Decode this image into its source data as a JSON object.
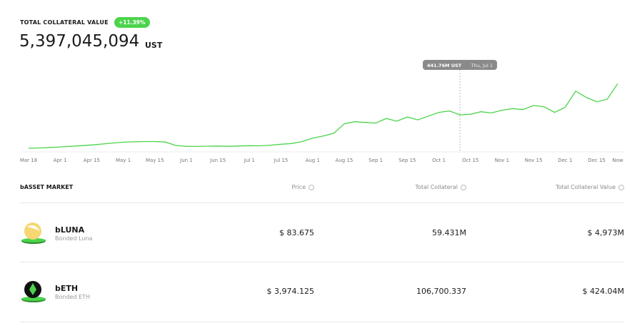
{
  "header": {
    "title": "TOTAL COLLATERAL VALUE",
    "change": "+11.39%",
    "value": "5,397,045,094",
    "unit": "UST"
  },
  "chart_data": {
    "type": "line",
    "color": "#4bd44b",
    "categories": [
      "Mar 18",
      null,
      null,
      "Apr 1",
      null,
      null,
      "Apr 15",
      null,
      null,
      "May 1",
      null,
      null,
      "May 15",
      null,
      null,
      "Jun 1",
      null,
      null,
      "Jun 15",
      null,
      null,
      "Jul 1",
      null,
      null,
      "Jul 15",
      null,
      null,
      "Aug 1",
      null,
      null,
      "Aug 15",
      null,
      null,
      "Sep 1",
      null,
      null,
      "Sep 15",
      null,
      null,
      "Oct 1",
      null,
      null,
      "Oct 15",
      null,
      null,
      "Nov 1",
      null,
      null,
      "Nov 15",
      null,
      null,
      "Dec 1",
      null,
      null,
      "Dec 15",
      null,
      "Now"
    ],
    "values": [
      220,
      250,
      290,
      330,
      380,
      430,
      490,
      560,
      640,
      710,
      740,
      760,
      760,
      720,
      450,
      380,
      370,
      390,
      400,
      380,
      410,
      430,
      420,
      470,
      545,
      600,
      760,
      1035,
      1200,
      1420,
      2180,
      2350,
      2290,
      2240,
      2610,
      2390,
      2725,
      2500,
      2800,
      3100,
      3210,
      2900,
      2950,
      3150,
      3050,
      3270,
      3400,
      3320,
      3650,
      3550,
      3100,
      3500,
      4800,
      4300,
      3950,
      4150,
      5400
    ],
    "tooltip": {
      "value_label": "441.76M UST",
      "date": "Thu, Jul 1"
    }
  },
  "table": {
    "headers": [
      "bASSET MARKET",
      "Price",
      "Total Collateral",
      "Total Collateral Value"
    ],
    "rows": [
      [
        "bLUNA",
        "Bonded Luna",
        "$ 83.675",
        "59.431M",
        "$ 4,973M"
      ],
      [
        "bETH",
        "Bonded ETH",
        "$ 3,974.125",
        "106,700.337",
        "$ 424.04M"
      ]
    ]
  }
}
